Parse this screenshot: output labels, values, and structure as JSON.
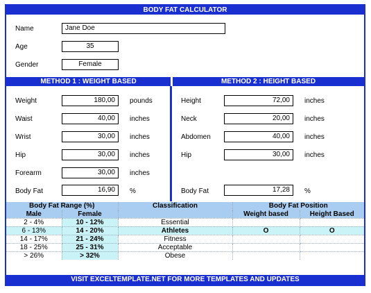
{
  "title": "BODY FAT CALCULATOR",
  "personal": {
    "name_label": "Name",
    "name_value": "Jane Doe",
    "age_label": "Age",
    "age_value": "35",
    "gender_label": "Gender",
    "gender_value": "Female"
  },
  "method1": {
    "header": "METHOD 1 : WEIGHT BASED",
    "rows": [
      {
        "label": "Weight",
        "value": "180,00",
        "unit": "pounds"
      },
      {
        "label": "Waist",
        "value": "40,00",
        "unit": "inches"
      },
      {
        "label": "Wrist",
        "value": "30,00",
        "unit": "inches"
      },
      {
        "label": "Hip",
        "value": "30,00",
        "unit": "inches"
      },
      {
        "label": "Forearm",
        "value": "30,00",
        "unit": "inches"
      }
    ],
    "bodyfat_label": "Body Fat",
    "bodyfat_value": "16,90",
    "bodyfat_unit": "%"
  },
  "method2": {
    "header": "METHOD 2 : HEIGHT BASED",
    "rows": [
      {
        "label": "Height",
        "value": "72,00",
        "unit": "inches"
      },
      {
        "label": "Neck",
        "value": "20,00",
        "unit": "inches"
      },
      {
        "label": "Abdomen",
        "value": "40,00",
        "unit": "inches"
      },
      {
        "label": "Hip",
        "value": "30,00",
        "unit": "inches"
      }
    ],
    "bodyfat_label": "Body Fat",
    "bodyfat_value": "17,28",
    "bodyfat_unit": "%"
  },
  "range_table": {
    "h_range": "Body Fat Range (%)",
    "h_class": "Classification",
    "h_position": "Body Fat Position",
    "h_male": "Male",
    "h_female": "Female",
    "h_weight": "Weight based",
    "h_height": "Height Based",
    "rows": [
      {
        "male": "2 - 4%",
        "female": "10 - 12%",
        "class": "Essential",
        "w": "",
        "h": ""
      },
      {
        "male": "6 - 13%",
        "female": "14 - 20%",
        "class": "Athletes",
        "w": "O",
        "h": "O"
      },
      {
        "male": "14 - 17%",
        "female": "21 - 24%",
        "class": "Fitness",
        "w": "",
        "h": ""
      },
      {
        "male": "18 - 25%",
        "female": "25 - 31%",
        "class": "Acceptable",
        "w": "",
        "h": ""
      },
      {
        "male": "> 26%",
        "female": "> 32%",
        "class": "Obese",
        "w": "",
        "h": ""
      }
    ]
  },
  "footer": "VISIT EXCELTEMPLATE.NET  FOR MORE TEMPLATES AND UPDATES",
  "colors": {
    "accent": "#1a2fcf",
    "header_fill": "#a9cdf0",
    "highlight": "#c9f3f7"
  }
}
